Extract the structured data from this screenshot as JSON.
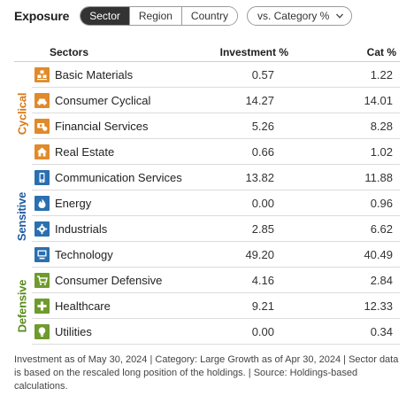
{
  "toolbar": {
    "title": "Exposure",
    "tabs": [
      {
        "label": "Sector",
        "active": true
      },
      {
        "label": "Region",
        "active": false
      },
      {
        "label": "Country",
        "active": false
      }
    ],
    "compare": {
      "label": "vs. Category %"
    }
  },
  "table": {
    "headers": {
      "sectors": "Sectors",
      "investment": "Investment  %",
      "category": "Cat  %"
    },
    "groups": [
      {
        "label": "Cyclical",
        "color": "#d67a18"
      },
      {
        "label": "Sensitive",
        "color": "#1f5a9e"
      },
      {
        "label": "Defensive",
        "color": "#5a8a1c"
      }
    ],
    "rows": [
      {
        "sector": "Basic Materials",
        "investment": "0.57",
        "category": "1.22",
        "icon": "basic-materials-icon",
        "color": "#e08a2a"
      },
      {
        "sector": "Consumer Cyclical",
        "investment": "14.27",
        "category": "14.01",
        "icon": "car-icon",
        "color": "#e08a2a"
      },
      {
        "sector": "Financial Services",
        "investment": "5.26",
        "category": "8.28",
        "icon": "financial-services-icon",
        "color": "#e08a2a"
      },
      {
        "sector": "Real Estate",
        "investment": "0.66",
        "category": "1.02",
        "icon": "house-icon",
        "color": "#e08a2a"
      },
      {
        "sector": "Communication Services",
        "investment": "13.82",
        "category": "11.88",
        "icon": "phone-icon",
        "color": "#2a6fb0"
      },
      {
        "sector": "Energy",
        "investment": "0.00",
        "category": "0.96",
        "icon": "flame-icon",
        "color": "#2a6fb0"
      },
      {
        "sector": "Industrials",
        "investment": "2.85",
        "category": "6.62",
        "icon": "gear-icon",
        "color": "#2a6fb0"
      },
      {
        "sector": "Technology",
        "investment": "49.20",
        "category": "40.49",
        "icon": "computer-icon",
        "color": "#2a6fb0"
      },
      {
        "sector": "Consumer Defensive",
        "investment": "4.16",
        "category": "2.84",
        "icon": "cart-icon",
        "color": "#6f9b2c"
      },
      {
        "sector": "Healthcare",
        "investment": "9.21",
        "category": "12.33",
        "icon": "medical-cross-icon",
        "color": "#6f9b2c"
      },
      {
        "sector": "Utilities",
        "investment": "0.00",
        "category": "0.34",
        "icon": "lightbulb-icon",
        "color": "#6f9b2c"
      }
    ]
  },
  "footnote": "Investment as of May 30, 2024 | Category: Large Growth as of Apr 30, 2024 | Sector data is based on the rescaled long position of the holdings. | Source: Holdings-based calculations."
}
